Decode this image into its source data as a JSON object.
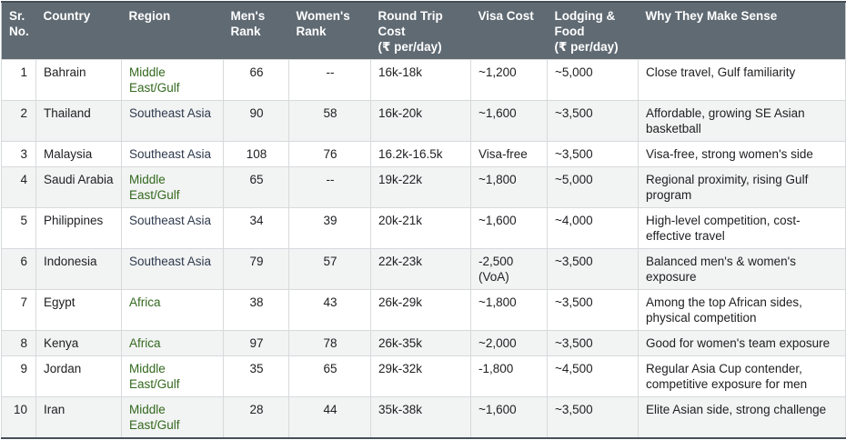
{
  "table": {
    "name": "country-travel-comparison-table",
    "columns": [
      {
        "key": "sr",
        "label": "Sr. No."
      },
      {
        "key": "country",
        "label": "Country"
      },
      {
        "key": "region",
        "label": "Region"
      },
      {
        "key": "mens",
        "label": "Men's Rank"
      },
      {
        "key": "womens",
        "label": "Women's Rank"
      },
      {
        "key": "round",
        "label": "Round Trip Cost",
        "sublabel": "(₹ per/day)"
      },
      {
        "key": "visa",
        "label": "Visa Cost"
      },
      {
        "key": "lodging",
        "label": "Lodging & Food",
        "sublabel": "(₹ per/day)"
      },
      {
        "key": "why",
        "label": "Why They Make Sense"
      }
    ],
    "rows": [
      {
        "sr": "1",
        "country": "Bahrain",
        "region": "Middle East/Gulf",
        "region_color": "green",
        "mens": "66",
        "womens": "--",
        "round": "16k-18k",
        "visa": "~1,200",
        "lodging": "~5,000",
        "why": "Close travel, Gulf familiarity"
      },
      {
        "sr": "2",
        "country": "Thailand",
        "region": "Southeast Asia",
        "region_color": "navy",
        "mens": "90",
        "womens": "58",
        "round": "16k-20k",
        "visa": "~1,600",
        "lodging": "~3,500",
        "why": "Affordable, growing SE Asian basketball"
      },
      {
        "sr": "3",
        "country": "Malaysia",
        "region": "Southeast Asia",
        "region_color": "navy",
        "mens": "108",
        "womens": "76",
        "round": "16.2k-16.5k",
        "visa": "Visa-free",
        "lodging": "~3,500",
        "why": "Visa-free, strong women's side"
      },
      {
        "sr": "4",
        "country": "Saudi Arabia",
        "region": "Middle East/Gulf",
        "region_color": "green",
        "mens": "65",
        "womens": "--",
        "round": "19k-22k",
        "visa": "~1,800",
        "lodging": "~5,000",
        "why": "Regional proximity, rising Gulf program"
      },
      {
        "sr": "5",
        "country": "Philippines",
        "region": "Southeast Asia",
        "region_color": "navy",
        "mens": "34",
        "womens": "39",
        "round": "20k-21k",
        "visa": "~1,600",
        "lodging": "~4,000",
        "why": "High-level competition, cost-effective travel"
      },
      {
        "sr": "6",
        "country": "Indonesia",
        "region": "Southeast Asia",
        "region_color": "navy",
        "mens": "79",
        "womens": "57",
        "round": "22k-23k",
        "visa": "-2,500 (VoA)",
        "lodging": "~3,500",
        "why": "Balanced men's & women's exposure"
      },
      {
        "sr": "7",
        "country": "Egypt",
        "region": "Africa",
        "region_color": "green",
        "mens": "38",
        "womens": "43",
        "round": "26k-29k",
        "visa": "~1,800",
        "lodging": "~3,500",
        "why": "Among the top African sides, physical competition"
      },
      {
        "sr": "8",
        "country": "Kenya",
        "region": "Africa",
        "region_color": "green",
        "mens": "97",
        "womens": "78",
        "round": "26k-35k",
        "visa": "~2,000",
        "lodging": "~3,500",
        "why": "Good for women's team exposure"
      },
      {
        "sr": "9",
        "country": "Jordan",
        "region": "Middle East/Gulf",
        "region_color": "green",
        "mens": "35",
        "womens": "65",
        "round": "29k-32k",
        "visa": "-1,800",
        "lodging": "~4,500",
        "why": "Regular Asia Cup contender, competitive exposure for men"
      },
      {
        "sr": "10",
        "country": "Iran",
        "region": "Middle East/Gulf",
        "region_color": "green",
        "mens": "28",
        "womens": "44",
        "round": "35k-38k",
        "visa": "~1,600",
        "lodging": "~3,500",
        "why": "Elite Asian side, strong challenge"
      }
    ]
  },
  "colors": {
    "header_bg": "#5f6a73",
    "header_text": "#ffffff",
    "row_alt_bg": "#f2f3f3",
    "grid_line": "#d7dadc",
    "body_text": "#202124",
    "region_green": "#33691e",
    "region_navy": "#2e3a4d",
    "outer_border": "#454f58"
  }
}
